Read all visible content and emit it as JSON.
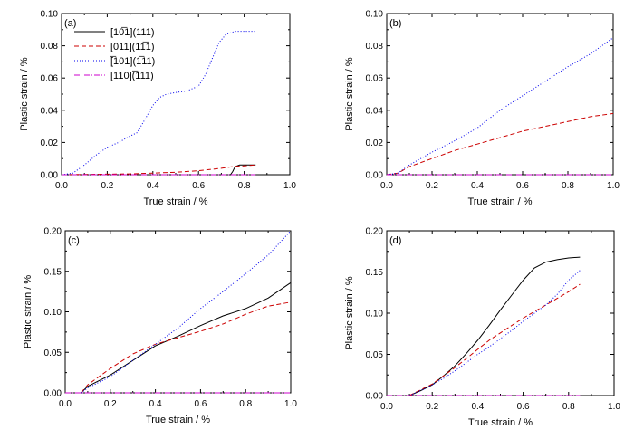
{
  "legend": {
    "placement": "top-left (panel a)",
    "entries": [
      {
        "label": "[10̅1](111)",
        "color": "#000000",
        "dash": "solid"
      },
      {
        "label": "[011](11̅1)",
        "color": "#cc0000",
        "dash": "dashed"
      },
      {
        "label": "[̅101](1̅11)",
        "color": "#0000ee",
        "dash": "dotted"
      },
      {
        "label": "[110](̅111)",
        "color": "#cc00cc",
        "dash": "dash-dot"
      }
    ]
  },
  "chart_data": [
    {
      "type": "line",
      "panel_label": "(a)",
      "xlabel": "True strain / %",
      "ylabel": "Plastic strain / %",
      "xlim": [
        0.0,
        1.0
      ],
      "ylim": [
        0.0,
        0.1
      ],
      "xticks": [
        0.0,
        0.2,
        0.4,
        0.6,
        0.8,
        1.0
      ],
      "yticks": [
        0.0,
        0.02,
        0.04,
        0.06,
        0.08,
        0.1
      ],
      "xtick_labels": [
        "0.0",
        "0.2",
        "0.4",
        "0.6",
        "0.8",
        "1.0"
      ],
      "ytick_labels": [
        "0.00",
        "0.02",
        "0.04",
        "0.06",
        "0.08",
        "0.10"
      ],
      "grid": false,
      "series": [
        {
          "name": "[10̅1](111)",
          "color": "#000000",
          "dash": "solid",
          "x": [
            0.0,
            0.74,
            0.75,
            0.76,
            0.78,
            0.8,
            0.85
          ],
          "y": [
            0.0,
            0.0,
            0.002,
            0.005,
            0.006,
            0.006,
            0.006
          ]
        },
        {
          "name": "[011](11̅1)",
          "color": "#cc0000",
          "dash": "dashed",
          "x": [
            0.0,
            0.3,
            0.5,
            0.6,
            0.7,
            0.75,
            0.8,
            0.85
          ],
          "y": [
            0.0,
            0.0005,
            0.0015,
            0.0025,
            0.004,
            0.005,
            0.0055,
            0.006
          ]
        },
        {
          "name": "[̅101](1̅11)",
          "color": "#0000ee",
          "dash": "dotted",
          "x": [
            0.0,
            0.05,
            0.1,
            0.15,
            0.2,
            0.25,
            0.3,
            0.33,
            0.36,
            0.4,
            0.43,
            0.46,
            0.5,
            0.55,
            0.6,
            0.63,
            0.66,
            0.69,
            0.72,
            0.76,
            0.8,
            0.85
          ],
          "y": [
            0.0,
            0.001,
            0.006,
            0.012,
            0.017,
            0.02,
            0.024,
            0.026,
            0.033,
            0.043,
            0.048,
            0.05,
            0.051,
            0.052,
            0.055,
            0.062,
            0.072,
            0.082,
            0.087,
            0.089,
            0.089,
            0.089
          ]
        },
        {
          "name": "[110](̅111)",
          "color": "#cc00cc",
          "dash": "dash-dot",
          "x": [
            0.0,
            0.85
          ],
          "y": [
            0.0,
            0.0
          ]
        }
      ]
    },
    {
      "type": "line",
      "panel_label": "(b)",
      "xlabel": "True strain / %",
      "ylabel": "Plastic strain / %",
      "xlim": [
        0.0,
        1.0
      ],
      "ylim": [
        0.0,
        0.1
      ],
      "xticks": [
        0.0,
        0.2,
        0.4,
        0.6,
        0.8,
        1.0
      ],
      "yticks": [
        0.0,
        0.02,
        0.04,
        0.06,
        0.08,
        0.1
      ],
      "xtick_labels": [
        "0.0",
        "0.2",
        "0.4",
        "0.6",
        "0.8",
        "1.0"
      ],
      "ytick_labels": [
        "0.00",
        "0.02",
        "0.04",
        "0.06",
        "0.08",
        "0.10"
      ],
      "grid": false,
      "series": [
        {
          "name": "[10̅1](111)",
          "color": "#000000",
          "dash": "solid",
          "x": [
            0.0,
            1.0
          ],
          "y": [
            0.0,
            0.0
          ]
        },
        {
          "name": "[011](11̅1)",
          "color": "#cc0000",
          "dash": "dashed",
          "x": [
            0.0,
            0.05,
            0.1,
            0.2,
            0.3,
            0.4,
            0.5,
            0.6,
            0.7,
            0.8,
            0.9,
            1.0
          ],
          "y": [
            0.0,
            0.001,
            0.005,
            0.01,
            0.015,
            0.019,
            0.023,
            0.027,
            0.03,
            0.033,
            0.036,
            0.038
          ]
        },
        {
          "name": "[̅101](1̅11)",
          "color": "#0000ee",
          "dash": "dotted",
          "x": [
            0.0,
            0.05,
            0.1,
            0.2,
            0.3,
            0.4,
            0.5,
            0.6,
            0.7,
            0.8,
            0.9,
            1.0
          ],
          "y": [
            0.0,
            0.001,
            0.006,
            0.014,
            0.021,
            0.029,
            0.04,
            0.049,
            0.058,
            0.067,
            0.075,
            0.085
          ]
        },
        {
          "name": "[110](̅111)",
          "color": "#cc00cc",
          "dash": "dash-dot",
          "x": [
            0.0,
            1.0
          ],
          "y": [
            0.0,
            0.0
          ]
        }
      ]
    },
    {
      "type": "line",
      "panel_label": "(c)",
      "xlabel": "True strain / %",
      "ylabel": "Plastic strain / %",
      "xlim": [
        0.0,
        1.0
      ],
      "ylim": [
        0.0,
        0.2
      ],
      "xticks": [
        0.0,
        0.2,
        0.4,
        0.6,
        0.8,
        1.0
      ],
      "yticks": [
        0.0,
        0.05,
        0.1,
        0.15,
        0.2
      ],
      "xtick_labels": [
        "0.0",
        "0.2",
        "0.4",
        "0.6",
        "0.8",
        "1.0"
      ],
      "ytick_labels": [
        "0.00",
        "0.05",
        "0.10",
        "0.15",
        "0.20"
      ],
      "grid": false,
      "series": [
        {
          "name": "[10̅1](111)",
          "color": "#000000",
          "dash": "solid",
          "x": [
            0.07,
            0.1,
            0.2,
            0.3,
            0.4,
            0.5,
            0.6,
            0.7,
            0.8,
            0.9,
            1.0
          ],
          "y": [
            0.0,
            0.008,
            0.022,
            0.04,
            0.058,
            0.07,
            0.083,
            0.095,
            0.104,
            0.117,
            0.136
          ]
        },
        {
          "name": "[011](11̅1)",
          "color": "#cc0000",
          "dash": "dashed",
          "x": [
            0.07,
            0.1,
            0.2,
            0.3,
            0.4,
            0.5,
            0.6,
            0.7,
            0.8,
            0.9,
            1.0
          ],
          "y": [
            0.0,
            0.01,
            0.03,
            0.048,
            0.06,
            0.068,
            0.076,
            0.085,
            0.097,
            0.107,
            0.112
          ]
        },
        {
          "name": "[̅101](1̅11)",
          "color": "#0000ee",
          "dash": "dotted",
          "x": [
            0.07,
            0.1,
            0.2,
            0.3,
            0.4,
            0.5,
            0.6,
            0.7,
            0.8,
            0.9,
            1.0
          ],
          "y": [
            0.0,
            0.006,
            0.02,
            0.04,
            0.06,
            0.08,
            0.104,
            0.125,
            0.147,
            0.17,
            0.2
          ]
        },
        {
          "name": "[110](̅111)",
          "color": "#cc00cc",
          "dash": "dash-dot",
          "x": [
            0.0,
            1.0
          ],
          "y": [
            0.0,
            0.0
          ]
        }
      ]
    },
    {
      "type": "line",
      "panel_label": "(d)",
      "xlabel": "True strain / %",
      "ylabel": "Plastic strain / %",
      "xlim": [
        0.0,
        1.0
      ],
      "ylim": [
        0.0,
        0.2
      ],
      "xticks": [
        0.0,
        0.2,
        0.4,
        0.6,
        0.8,
        1.0
      ],
      "yticks": [
        0.0,
        0.05,
        0.1,
        0.15,
        0.2
      ],
      "xtick_labels": [
        "0.0",
        "0.2",
        "0.4",
        "0.6",
        "0.8",
        "1.0"
      ],
      "ytick_labels": [
        "0.00",
        "0.05",
        "0.10",
        "0.15",
        "0.20"
      ],
      "grid": false,
      "series": [
        {
          "name": "[10̅1](111)",
          "color": "#000000",
          "dash": "solid",
          "x": [
            0.1,
            0.15,
            0.2,
            0.25,
            0.3,
            0.35,
            0.4,
            0.45,
            0.5,
            0.55,
            0.6,
            0.65,
            0.7,
            0.75,
            0.8,
            0.85
          ],
          "y": [
            0.0,
            0.006,
            0.013,
            0.024,
            0.036,
            0.051,
            0.067,
            0.085,
            0.104,
            0.122,
            0.14,
            0.155,
            0.162,
            0.165,
            0.167,
            0.168
          ]
        },
        {
          "name": "[011](11̅1)",
          "color": "#cc0000",
          "dash": "dashed",
          "x": [
            0.1,
            0.15,
            0.2,
            0.25,
            0.3,
            0.35,
            0.4,
            0.45,
            0.5,
            0.55,
            0.6,
            0.65,
            0.7,
            0.75,
            0.8,
            0.85
          ],
          "y": [
            0.0,
            0.007,
            0.014,
            0.024,
            0.034,
            0.045,
            0.056,
            0.067,
            0.076,
            0.085,
            0.094,
            0.102,
            0.11,
            0.118,
            0.126,
            0.135
          ]
        },
        {
          "name": "[̅101](1̅11)",
          "color": "#0000ee",
          "dash": "dotted",
          "x": [
            0.1,
            0.15,
            0.2,
            0.25,
            0.3,
            0.35,
            0.4,
            0.45,
            0.5,
            0.55,
            0.6,
            0.65,
            0.7,
            0.75,
            0.8,
            0.85
          ],
          "y": [
            0.0,
            0.006,
            0.013,
            0.021,
            0.03,
            0.04,
            0.05,
            0.059,
            0.069,
            0.079,
            0.09,
            0.1,
            0.11,
            0.123,
            0.14,
            0.152
          ]
        },
        {
          "name": "[110](̅111)",
          "color": "#cc00cc",
          "dash": "dash-dot",
          "x": [
            0.0,
            0.85
          ],
          "y": [
            0.0,
            0.0
          ]
        }
      ]
    }
  ]
}
